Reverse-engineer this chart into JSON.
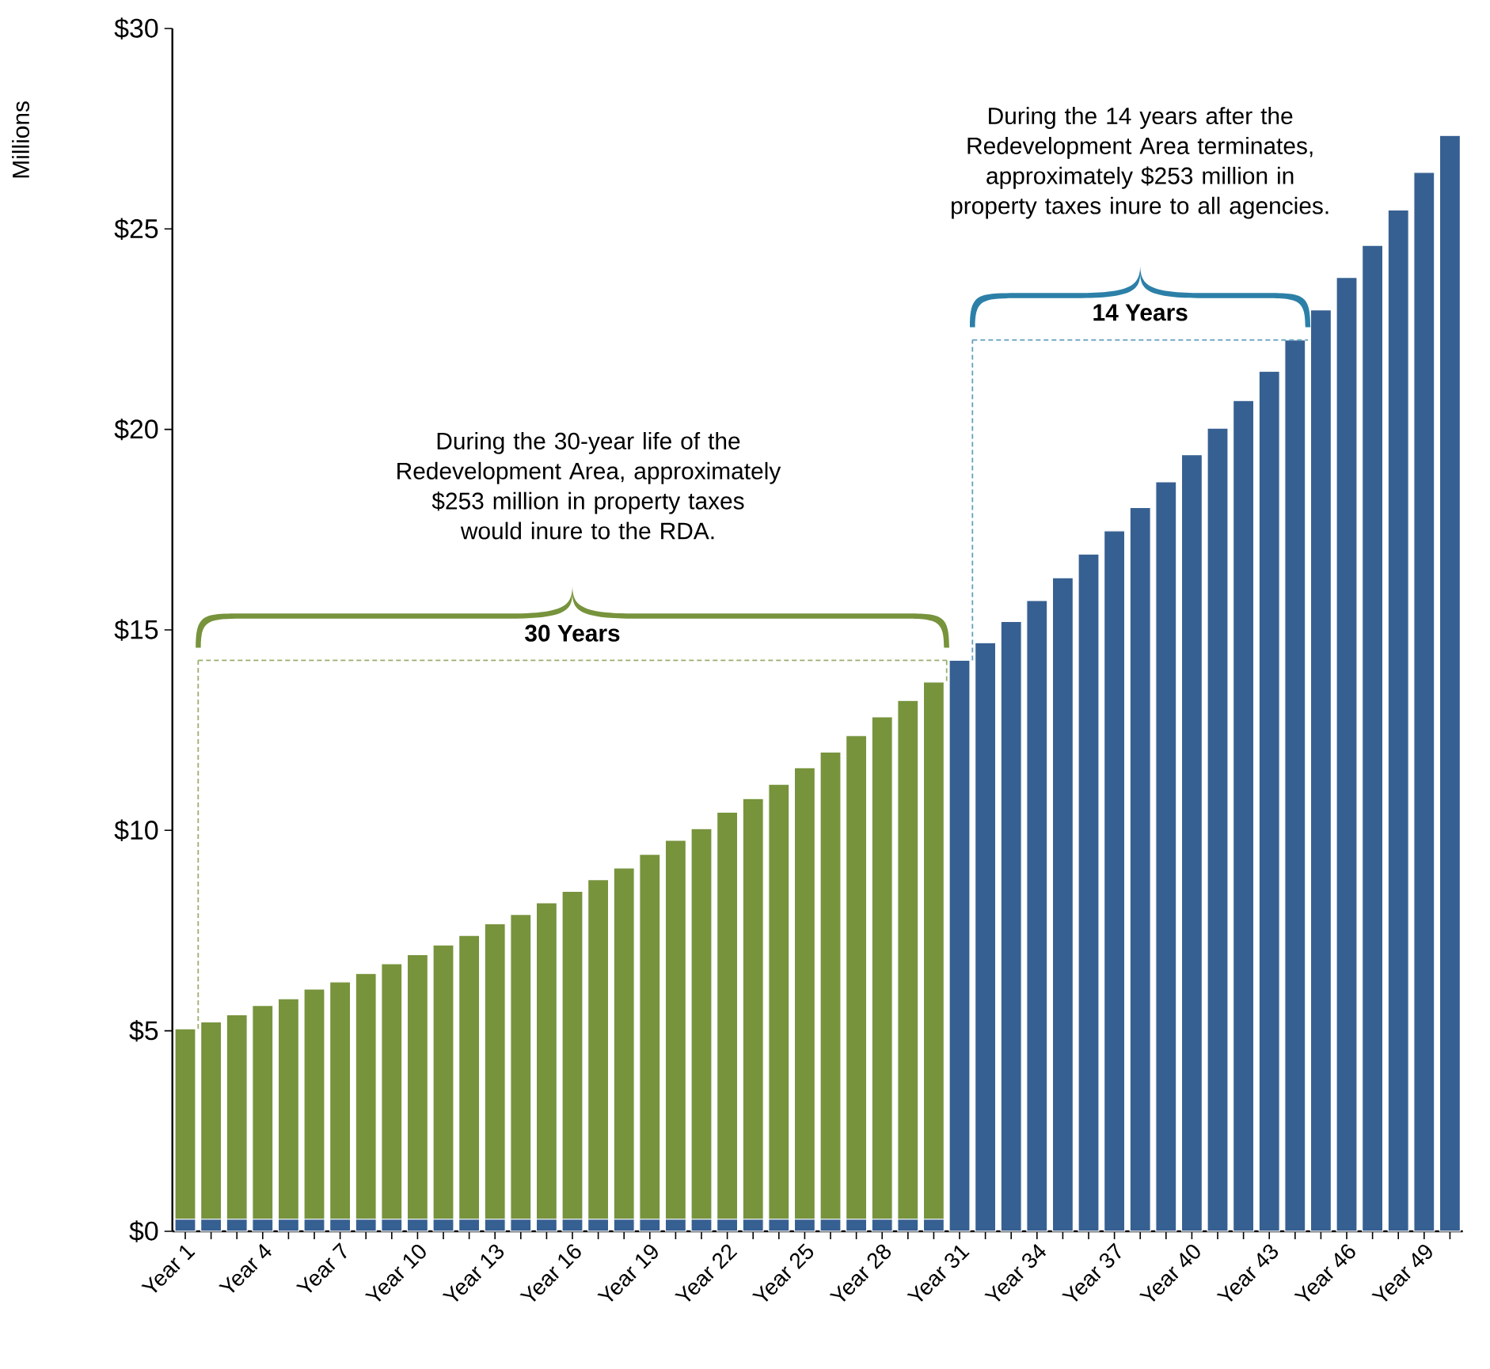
{
  "chart_data": {
    "type": "bar",
    "stacked": true,
    "ylabel": "Millions",
    "categories": [
      "Year 1",
      null,
      null,
      "Year 4",
      null,
      null,
      "Year 7",
      null,
      null,
      "Year 10",
      null,
      null,
      "Year 13",
      null,
      null,
      "Year 16",
      null,
      null,
      "Year 19",
      null,
      null,
      "Year 22",
      null,
      null,
      "Year 25",
      null,
      null,
      "Year 28",
      null,
      null,
      "Year 31",
      null,
      null,
      "Year 34",
      null,
      null,
      "Year 37",
      null,
      null,
      "Year 40",
      null,
      null,
      "Year 43",
      null,
      null,
      "Year 46",
      null,
      null,
      "Year 49",
      null
    ],
    "series": [
      {
        "color": "#376092",
        "values": [
          0.3,
          0.3,
          0.3,
          0.3,
          0.3,
          0.3,
          0.3,
          0.3,
          0.3,
          0.3,
          0.3,
          0.3,
          0.3,
          0.3,
          0.3,
          0.3,
          0.3,
          0.3,
          0.3,
          0.3,
          0.3,
          0.3,
          0.3,
          0.3,
          0.3,
          0.3,
          0.3,
          0.3,
          0.3,
          0.3,
          14.24,
          14.68,
          15.21,
          15.73,
          16.3,
          16.89,
          17.47,
          18.05,
          18.69,
          19.37,
          20.03,
          20.72,
          21.45,
          22.23,
          22.98,
          23.79,
          24.59,
          25.47,
          26.41,
          27.33
        ]
      },
      {
        "color": "#77933c",
        "values": [
          4.75,
          4.92,
          5.1,
          5.33,
          5.5,
          5.74,
          5.92,
          6.13,
          6.37,
          6.6,
          6.84,
          7.08,
          7.37,
          7.6,
          7.89,
          8.18,
          8.47,
          8.76,
          9.1,
          9.45,
          9.74,
          10.15,
          10.49,
          10.85,
          11.26,
          11.65,
          12.06,
          12.53,
          12.94,
          13.4,
          null,
          null,
          null,
          null,
          null,
          null,
          null,
          null,
          null,
          null,
          null,
          null,
          null,
          null,
          null,
          null,
          null,
          null,
          null,
          null
        ]
      }
    ],
    "ylim": [
      0,
      30
    ],
    "yticks": [
      {
        "value": 0,
        "label": "$0"
      },
      {
        "value": 5,
        "label": "$5"
      },
      {
        "value": 10,
        "label": "$10"
      },
      {
        "value": 15,
        "label": "$15"
      },
      {
        "value": 20,
        "label": "$20"
      },
      {
        "value": 25,
        "label": "$25"
      },
      {
        "value": 30,
        "label": "$30"
      }
    ],
    "grid": false,
    "legend": false,
    "annotations": [
      "During the 30-year life of the Redevelopment Area, approximately $253 million in property taxes would inure to the RDA.",
      "30 Years",
      "During the 14 years after the Redevelopment Area terminates, approximately $253 million in property taxes inure to all agencies.",
      "14 Years"
    ]
  }
}
